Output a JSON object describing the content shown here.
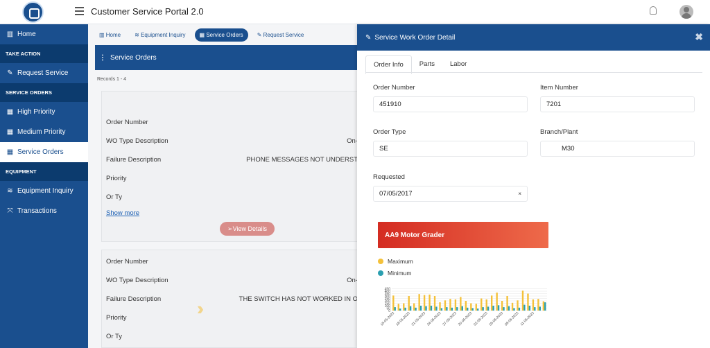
{
  "app": {
    "title": "Customer Service Portal 2.0"
  },
  "sidebar": {
    "home": "Home",
    "sections": [
      {
        "header": "TAKE ACTION",
        "items": [
          {
            "label": "Request Service",
            "icon": "pencil-icon"
          }
        ]
      },
      {
        "header": "SERVICE ORDERS",
        "items": [
          {
            "label": "High Priority",
            "icon": "grid-icon"
          },
          {
            "label": "Medium Priority",
            "icon": "grid-icon"
          },
          {
            "label": "Service Orders",
            "icon": "grid-icon",
            "active": true
          }
        ]
      },
      {
        "header": "EQUIPMENT",
        "items": [
          {
            "label": "Equipment Inquiry",
            "icon": "layers-icon"
          },
          {
            "label": "Transactions",
            "icon": "expand-icon"
          }
        ]
      }
    ]
  },
  "tabs": [
    "Home",
    "Equipment Inquiry",
    "Service Orders",
    "Request Service"
  ],
  "list": {
    "header": "Service Orders",
    "records": "Records  1 - 4",
    "labels": {
      "order_number": "Order Number",
      "wo_type": "WO Type Description",
      "failure": "Failure Description",
      "priority": "Priority",
      "or_ty": "Or Ty"
    },
    "cards": [
      {
        "wo_type": "On-",
        "failure": "PHONE MESSAGES NOT UNDERST"
      },
      {
        "wo_type": "On-",
        "failure": "THE SWITCH HAS NOT WORKED IN O"
      }
    ],
    "show_more": "Show more",
    "view_details": "View Details"
  },
  "panel": {
    "title": "Service Work Order Detail",
    "tabs": [
      "Order Info",
      "Parts",
      "Labor"
    ],
    "fields": {
      "order_number": {
        "label": "Order Number",
        "value": "451910"
      },
      "item_number": {
        "label": "Item Number",
        "value": "7201"
      },
      "order_type": {
        "label": "Order Type",
        "value": "SE"
      },
      "branch_plant": {
        "label": "Branch/Plant",
        "value": "M30"
      },
      "requested": {
        "label": "Requested",
        "value": "07/05/2017"
      }
    }
  },
  "chart_data": {
    "type": "bar",
    "title": "AA9 Motor Grader",
    "ylim": [
      0,
      500
    ],
    "yticks": [
      0,
      50,
      100,
      150,
      200,
      250,
      300,
      350,
      400,
      450
    ],
    "categories": [
      "15-05-2023",
      "16-05-2023",
      "17-05-2023",
      "18-05-2023",
      "19-05-2023",
      "20-05-2023",
      "21-05-2023",
      "22-05-2023",
      "23-05-2023",
      "24-05-2023",
      "25-05-2023",
      "26-05-2023",
      "27-05-2023",
      "28-05-2023",
      "29-05-2023",
      "30-05-2023",
      "31-05-2023",
      "01-06-2023",
      "02-06-2023",
      "03-06-2023",
      "04-06-2023",
      "05-06-2023",
      "06-06-2023",
      "07-06-2023",
      "08-06-2023",
      "09-06-2023",
      "10-06-2023",
      "11-06-2023",
      "12-06-2023",
      "13-06-2023"
    ],
    "tick_labels": [
      "15-05-2023",
      "18-05-2023",
      "21-05-2023",
      "24-05-2023",
      "27-05-2023",
      "30-05-2023",
      "02-06-2023",
      "05-06-2023",
      "08-06-2023",
      "11-06-2023"
    ],
    "series": [
      {
        "name": "Maximum",
        "color": "#f4c13a",
        "values": [
          310,
          140,
          150,
          300,
          150,
          340,
          320,
          330,
          300,
          170,
          210,
          240,
          230,
          280,
          200,
          150,
          140,
          250,
          230,
          310,
          370,
          200,
          300,
          160,
          210,
          410,
          350,
          230,
          240,
          190
        ]
      },
      {
        "name": "Minimum",
        "color": "#2a9fb0",
        "values": [
          70,
          40,
          60,
          90,
          60,
          100,
          90,
          100,
          80,
          50,
          70,
          60,
          70,
          90,
          60,
          50,
          40,
          70,
          80,
          100,
          110,
          70,
          90,
          50,
          60,
          120,
          100,
          70,
          80,
          170
        ]
      }
    ]
  }
}
